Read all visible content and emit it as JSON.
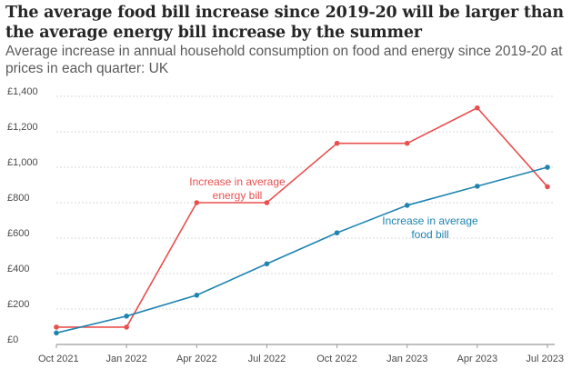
{
  "chart_data": {
    "type": "line",
    "title": "The average food bill increase since 2019-20 will be larger than the average energy bill increase by the summer",
    "subtitle": "Average increase in annual household consumption on food and energy since 2019-20 at prices in each quarter: UK",
    "categories": [
      "Oct 2021",
      "Jan 2022",
      "Apr 2022",
      "Jul 2022",
      "Oct 2022",
      "Jan 2023",
      "Apr 2023",
      "Jul 2023"
    ],
    "series": [
      {
        "name": "energy",
        "label_lines": [
          "Increase in average",
          "energy bill"
        ],
        "color": "#e8504f",
        "values": [
          98,
          98,
          800,
          800,
          1135,
          1135,
          1335,
          890
        ]
      },
      {
        "name": "food",
        "label_lines": [
          "Increase in average",
          "food bill"
        ],
        "color": "#1f84b0",
        "values": [
          65,
          160,
          278,
          455,
          630,
          785,
          893,
          1000
        ]
      }
    ],
    "yticks": [
      "£0",
      "£200",
      "£400",
      "£600",
      "£800",
      "£1,000",
      "£1,200",
      "£1,400"
    ],
    "ylim": [
      0,
      1400
    ],
    "grid": true,
    "xlabel": "",
    "ylabel": ""
  }
}
